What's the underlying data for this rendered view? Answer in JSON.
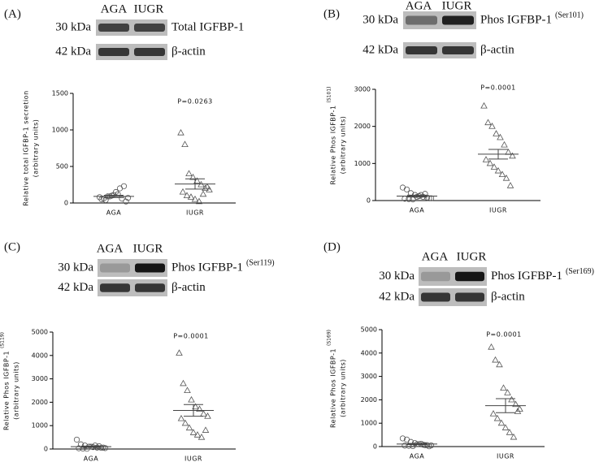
{
  "chart_data": [
    {
      "type": "strip",
      "panel": "(A)",
      "blot": {
        "lanes": [
          "AGA",
          "IUGR"
        ],
        "bands": [
          {
            "size": "30 kDa",
            "label": "Total IGFBP-1"
          },
          {
            "size": "42 kDa",
            "label": "β-actin"
          }
        ]
      },
      "ylabel": [
        "Relative total IGFBP-1 secretion",
        "(arbitrary units)"
      ],
      "annotation": "P=0.0263",
      "ylim": [
        0,
        1500
      ],
      "yticks": [
        0,
        500,
        1000,
        1500
      ],
      "groups": [
        {
          "category": "AGA",
          "marker": "circle",
          "values": [
            80,
            60,
            90,
            100,
            150,
            200,
            230,
            70,
            50,
            40,
            90,
            110,
            120,
            60,
            20
          ],
          "mean": 90,
          "sem": 15
        },
        {
          "category": "IUGR",
          "marker": "triangle",
          "values": [
            960,
            800,
            400,
            350,
            300,
            250,
            200,
            180,
            150,
            100,
            80,
            50,
            20,
            120,
            220
          ],
          "mean": 260,
          "sem": 70
        }
      ]
    },
    {
      "type": "strip",
      "panel": "(B)",
      "blot": {
        "lanes": [
          "AGA",
          "IUGR"
        ],
        "bands": [
          {
            "size": "30 kDa",
            "label": "Phos IGFBP-1",
            "sup": "(Ser101)"
          },
          {
            "size": "42 kDa",
            "label": "β-actin"
          }
        ]
      },
      "ylabel": [
        "Relative Phos IGFBP-1",
        "(arbitrary units)"
      ],
      "ylabel_sup": "(S101)",
      "annotation": "P=0.0001",
      "ylim": [
        0,
        3000
      ],
      "yticks": [
        0,
        1000,
        2000,
        3000
      ],
      "groups": [
        {
          "category": "AGA",
          "marker": "circle",
          "values": [
            350,
            300,
            200,
            150,
            120,
            100,
            80,
            60,
            50,
            40,
            30,
            100,
            150,
            180,
            60
          ],
          "mean": 120,
          "sem": 25
        },
        {
          "category": "IUGR",
          "marker": "triangle",
          "values": [
            2550,
            2100,
            2000,
            1800,
            1700,
            1500,
            1300,
            1200,
            1100,
            1000,
            900,
            800,
            700,
            600,
            400
          ],
          "mean": 1250,
          "sem": 130
        }
      ]
    },
    {
      "type": "strip",
      "panel": "(C)",
      "blot": {
        "lanes": [
          "AGA",
          "IUGR"
        ],
        "bands": [
          {
            "size": "30 kDa",
            "label": "Phos IGFBP-1",
            "sup": "(Ser119)"
          },
          {
            "size": "42 kDa",
            "label": "β-actin"
          }
        ]
      },
      "ylabel": [
        "Relative Phos IGFBP-1",
        "(arbitrary units)"
      ],
      "ylabel_sup": "(S119)",
      "annotation": "P=0.0001",
      "ylim": [
        0,
        5000
      ],
      "yticks": [
        0,
        1000,
        2000,
        3000,
        4000,
        5000
      ],
      "groups": [
        {
          "category": "AGA",
          "marker": "circle",
          "values": [
            400,
            200,
            150,
            100,
            80,
            60,
            50,
            40,
            30,
            20,
            10,
            100,
            150,
            120,
            60
          ],
          "mean": 100,
          "sem": 25
        },
        {
          "category": "IUGR",
          "marker": "triangle",
          "values": [
            4100,
            2800,
            2500,
            2100,
            1800,
            1700,
            1500,
            1400,
            1300,
            1100,
            900,
            700,
            600,
            500,
            800
          ],
          "mean": 1650,
          "sem": 250
        }
      ]
    },
    {
      "type": "strip",
      "panel": "(D)",
      "blot": {
        "lanes": [
          "AGA",
          "IUGR"
        ],
        "bands": [
          {
            "size": "30 kDa",
            "label": "Phos IGFBP-1",
            "sup": "(Ser169)"
          },
          {
            "size": "42 kDa",
            "label": "β-actin"
          }
        ]
      },
      "ylabel": [
        "Relative Phos IGFBP-1",
        "(arbitrary units)"
      ],
      "ylabel_sup": "(S169)",
      "annotation": "P=0.0001",
      "ylim": [
        0,
        5000
      ],
      "yticks": [
        0,
        1000,
        2000,
        3000,
        4000,
        5000
      ],
      "groups": [
        {
          "category": "AGA",
          "marker": "circle",
          "values": [
            350,
            300,
            200,
            150,
            100,
            80,
            60,
            50,
            40,
            30,
            20,
            100,
            120,
            60,
            10
          ],
          "mean": 110,
          "sem": 25
        },
        {
          "category": "IUGR",
          "marker": "triangle",
          "values": [
            4250,
            3700,
            3500,
            2500,
            2300,
            2000,
            1800,
            1600,
            1400,
            1200,
            1000,
            800,
            600,
            400,
            1500
          ],
          "mean": 1750,
          "sem": 300
        }
      ]
    }
  ]
}
